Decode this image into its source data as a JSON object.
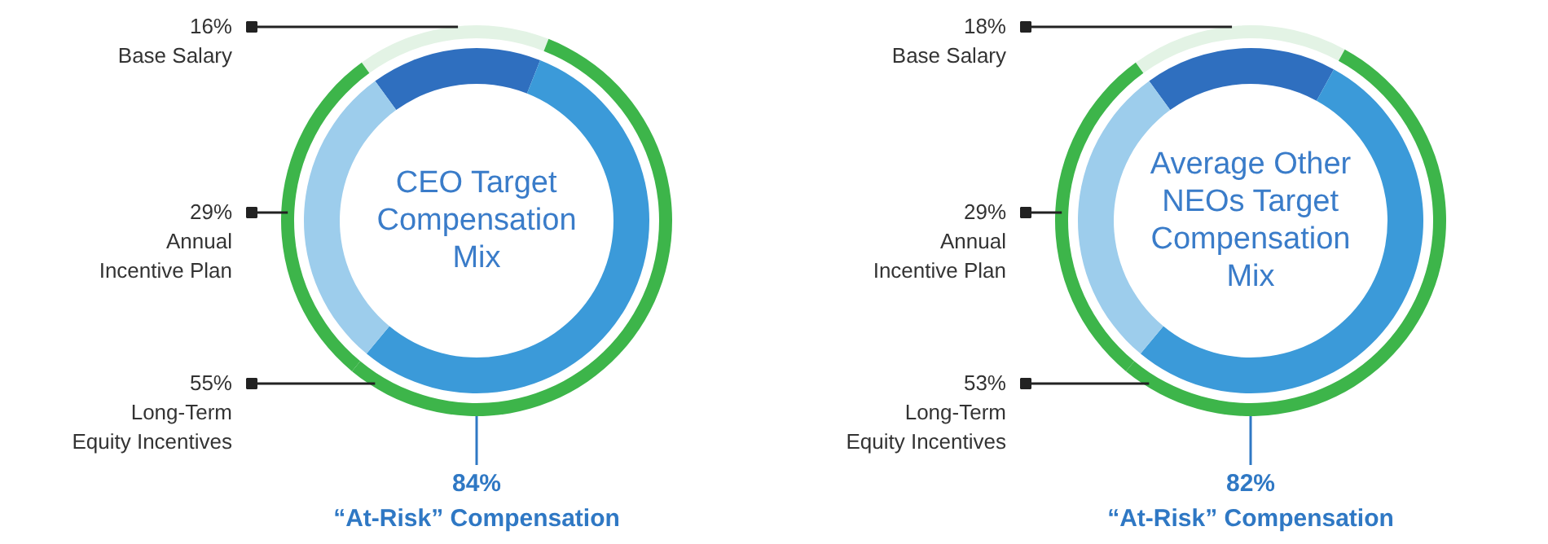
{
  "chart_data": [
    {
      "type": "donut",
      "title": "CEO Target\nCompensation\nMix",
      "categories": [
        "Base Salary",
        "Long-Term\nEquity Incentives",
        "Annual\nIncentive Plan"
      ],
      "series": [
        {
          "values": [
            16,
            55,
            29
          ],
          "colors": [
            "#2f6fbf",
            "#3b9ad9",
            "#9dcdec"
          ],
          "value_labels": [
            "16%",
            "55%",
            "29%"
          ]
        },
        {
          "values": [
            16,
            55,
            29
          ],
          "colors": [
            "#e3f3e5",
            "#3db54a",
            "#3db54a"
          ]
        }
      ],
      "annotations": [
        "84%\n“At-Risk” Compensation"
      ]
    },
    {
      "type": "donut",
      "title": "Average Other\nNEOs Target\nCompensation\nMix",
      "categories": [
        "Base Salary",
        "Long-Term\nEquity Incentives",
        "Annual\nIncentive Plan"
      ],
      "series": [
        {
          "values": [
            18,
            53,
            29
          ],
          "colors": [
            "#2f6fbf",
            "#3b9ad9",
            "#9dcdec"
          ],
          "value_labels": [
            "18%",
            "53%",
            "29%"
          ]
        },
        {
          "values": [
            18,
            53,
            29
          ],
          "colors": [
            "#e3f3e5",
            "#3db54a",
            "#3db54a"
          ]
        }
      ],
      "annotations": [
        "82%\n“At-Risk” Compensation"
      ]
    }
  ]
}
